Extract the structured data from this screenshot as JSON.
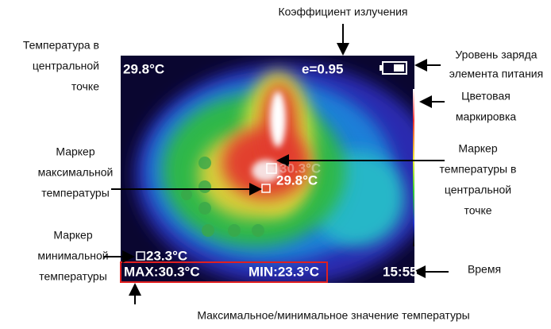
{
  "title": "Коэффициент излучения",
  "screen": {
    "center_temp": "29.8°C",
    "emissivity": "e=0.95",
    "max_marker_temp": "30.3°C",
    "center_marker_temp": "29.8°C",
    "min_marker_temp": "23.3°C",
    "max": "MAX:30.3°C",
    "min": "MIN:23.3°C",
    "time": "15:55"
  },
  "callouts": [
    {
      "lines": [
        "Температура в",
        "центральной",
        "точке"
      ]
    },
    {
      "lines": [
        "Уровень заряда",
        "элемента питания"
      ]
    },
    {
      "lines": [
        "Цветовая",
        "маркировка"
      ]
    },
    {
      "lines": [
        "Маркер",
        "максимальной",
        "температуры"
      ]
    },
    {
      "lines": [
        "Маркер",
        "температуры в",
        "центральной",
        "точке"
      ]
    },
    {
      "lines": [
        "Маркер",
        "минимальной",
        "температуры"
      ]
    },
    {
      "lines": [
        "Время"
      ]
    },
    {
      "lines": [
        "Максимальное/минимальное значение температуры"
      ]
    }
  ]
}
